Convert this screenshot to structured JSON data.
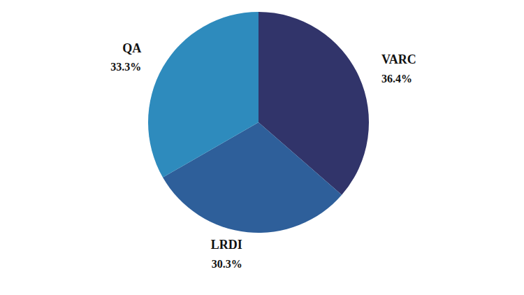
{
  "chart_data": {
    "type": "pie",
    "categories": [
      "VARC",
      "LRDI",
      "QA"
    ],
    "values": [
      36.4,
      30.3,
      33.3
    ],
    "value_labels": [
      "36.4%",
      "30.3%",
      "33.3%"
    ],
    "colors": [
      "#31346a",
      "#2e5f9a",
      "#2e8bbd"
    ],
    "data_labels": true
  }
}
